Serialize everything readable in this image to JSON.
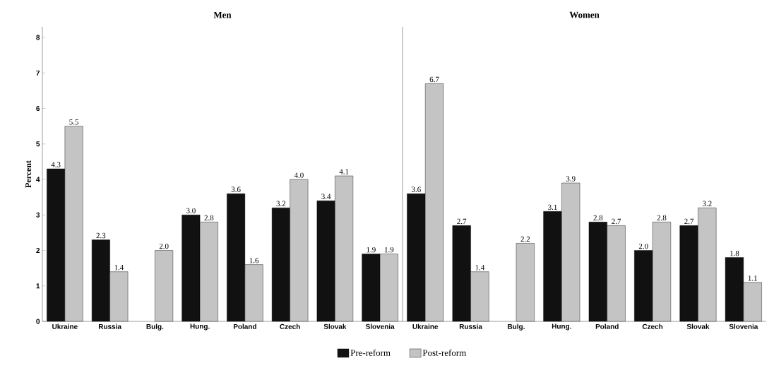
{
  "chart_data": [
    {
      "type": "bar",
      "title": "Men",
      "ylabel": "Percent",
      "categories": [
        "Ukraine",
        "Russia",
        "Bulg.",
        "Hung.",
        "Poland",
        "Czech",
        "Slovak",
        "Slovenia"
      ],
      "series": [
        {
          "name": "Pre-reform",
          "color": "#111111",
          "values": [
            4.3,
            2.3,
            null,
            3.0,
            3.6,
            3.2,
            3.4,
            1.9
          ],
          "value_labels": [
            "4.3",
            "2.3",
            null,
            "3.0",
            "3.6",
            "3.2",
            "3.4",
            "1.9"
          ]
        },
        {
          "name": "Post-reform",
          "color": "#c4c4c4",
          "values": [
            5.5,
            1.4,
            2.0,
            2.8,
            1.6,
            4.0,
            4.1,
            1.9
          ],
          "value_labels": [
            "5.5",
            "1.4",
            "2.0",
            "2.8",
            "1.6",
            "4.0",
            "4.1",
            "1.9"
          ]
        }
      ],
      "ylim": [
        0,
        8.3
      ],
      "yticks": [
        0,
        1,
        2,
        3,
        4,
        5,
        6,
        7,
        8
      ],
      "legend": "bottom"
    },
    {
      "type": "bar",
      "title": "Women",
      "categories": [
        "Ukraine",
        "Russia",
        "Bulg.",
        "Hung.",
        "Poland",
        "Czech",
        "Slovak",
        "Slovenia"
      ],
      "series": [
        {
          "color": "#111111",
          "values": [
            3.6,
            2.7,
            null,
            3.1,
            2.8,
            2.0,
            2.7,
            1.8
          ],
          "value_labels": [
            "3.6",
            "2.7",
            null,
            "3.1",
            "2.8",
            "2.0",
            "2.7",
            "1.8"
          ]
        },
        {
          "color": "#c4c4c4",
          "values": [
            6.7,
            1.4,
            2.2,
            3.9,
            2.7,
            2.8,
            3.2,
            1.1
          ],
          "value_labels": [
            "6.7",
            "1.4",
            "2.2",
            "3.9",
            "2.7",
            "2.8",
            "3.2",
            "1.1"
          ]
        }
      ],
      "ylim": [
        0,
        8.3
      ],
      "yticks": [
        0,
        1,
        2,
        3,
        4,
        5,
        6,
        7,
        8
      ],
      "tick_labels": "x"
    }
  ]
}
